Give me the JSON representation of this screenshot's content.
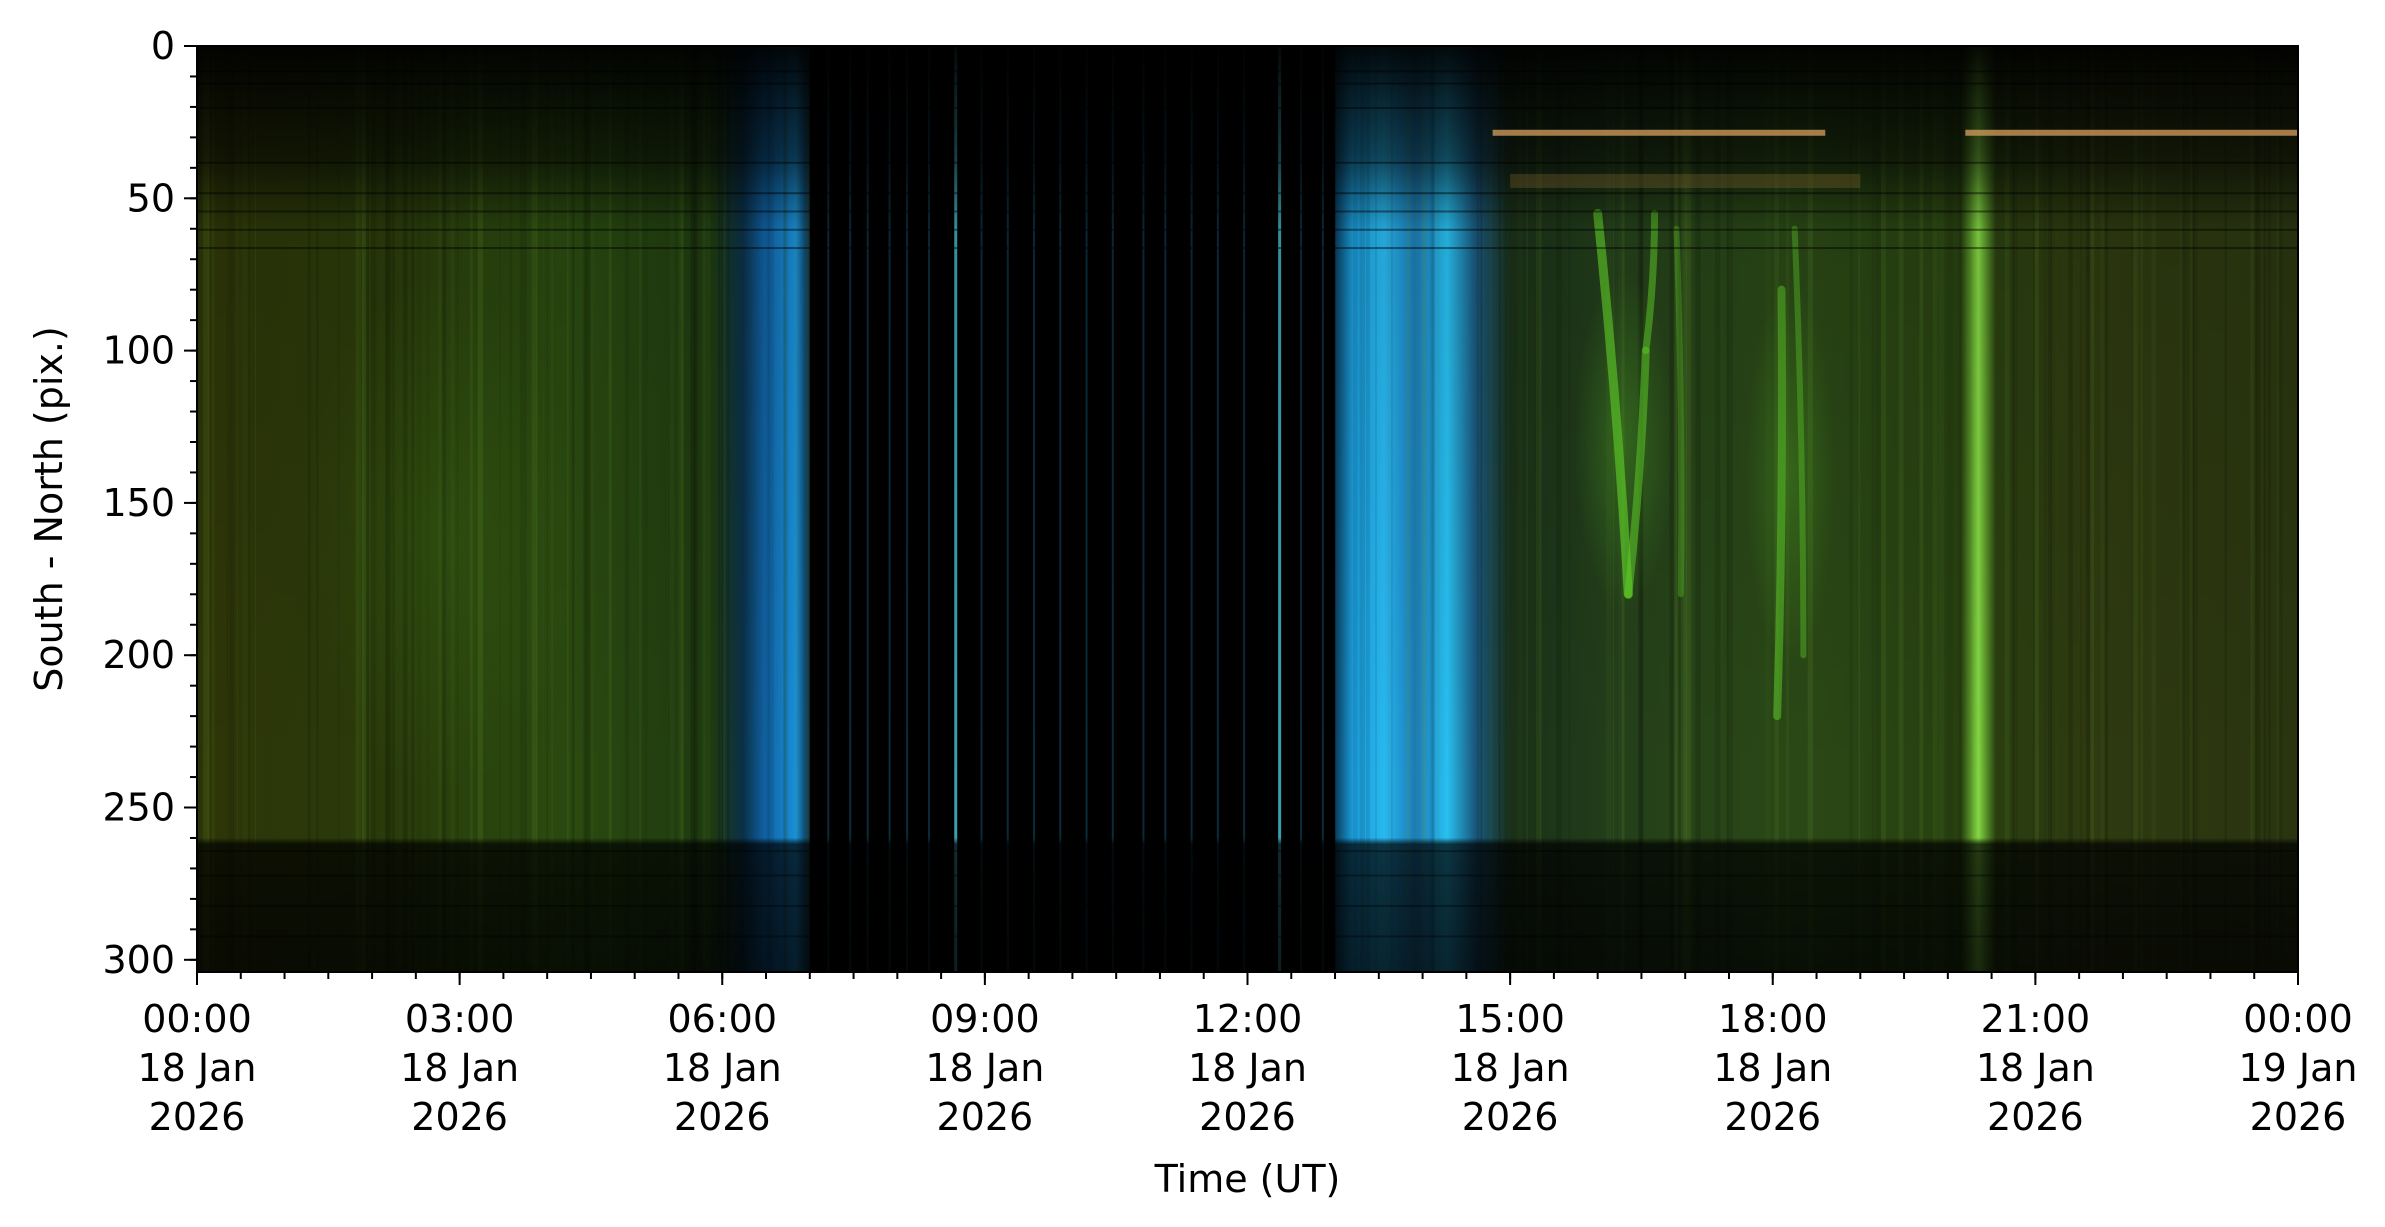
{
  "chart_data": {
    "type": "heatmap",
    "title": "",
    "xlabel": "Time (UT)",
    "ylabel": "South - North (pix.)",
    "x_ticks": [
      {
        "hours": 0,
        "lines": [
          "00:00",
          "18 Jan",
          "2026"
        ]
      },
      {
        "hours": 3,
        "lines": [
          "03:00",
          "18 Jan",
          "2026"
        ]
      },
      {
        "hours": 6,
        "lines": [
          "06:00",
          "18 Jan",
          "2026"
        ]
      },
      {
        "hours": 9,
        "lines": [
          "09:00",
          "18 Jan",
          "2026"
        ]
      },
      {
        "hours": 12,
        "lines": [
          "12:00",
          "18 Jan",
          "2026"
        ]
      },
      {
        "hours": 15,
        "lines": [
          "15:00",
          "18 Jan",
          "2026"
        ]
      },
      {
        "hours": 18,
        "lines": [
          "18:00",
          "18 Jan",
          "2026"
        ]
      },
      {
        "hours": 21,
        "lines": [
          "21:00",
          "18 Jan",
          "2026"
        ]
      },
      {
        "hours": 24,
        "lines": [
          "00:00",
          "19 Jan",
          "2026"
        ]
      }
    ],
    "y_ticks": [
      0,
      50,
      100,
      150,
      200,
      250,
      300
    ],
    "xlim": [
      "2026-01-18 00:00",
      "2026-01-19 00:00"
    ],
    "ylim": [
      304,
      0
    ],
    "grid": false,
    "legend": "none",
    "image_regions": [
      {
        "from_hour": 0.0,
        "to_hour": 5.9,
        "tone": "dim-green-olive"
      },
      {
        "from_hour": 5.9,
        "to_hour": 7.0,
        "tone": "blue-twilight"
      },
      {
        "from_hour": 7.0,
        "to_hour": 13.0,
        "tone": "black-daylight-with-cyan-lines"
      },
      {
        "from_hour": 13.0,
        "to_hour": 14.6,
        "tone": "cyan-twilight"
      },
      {
        "from_hour": 14.6,
        "to_hour": 24.0,
        "tone": "green-aurora"
      }
    ],
    "colors": {
      "green": "#3c6a1a",
      "olive": "#3a3a10",
      "blue": "#1a7fc0",
      "cyan": "#3fd8ff",
      "bright_green": "#7ee03a",
      "orange": "#d8a060",
      "black": "#000000"
    }
  }
}
